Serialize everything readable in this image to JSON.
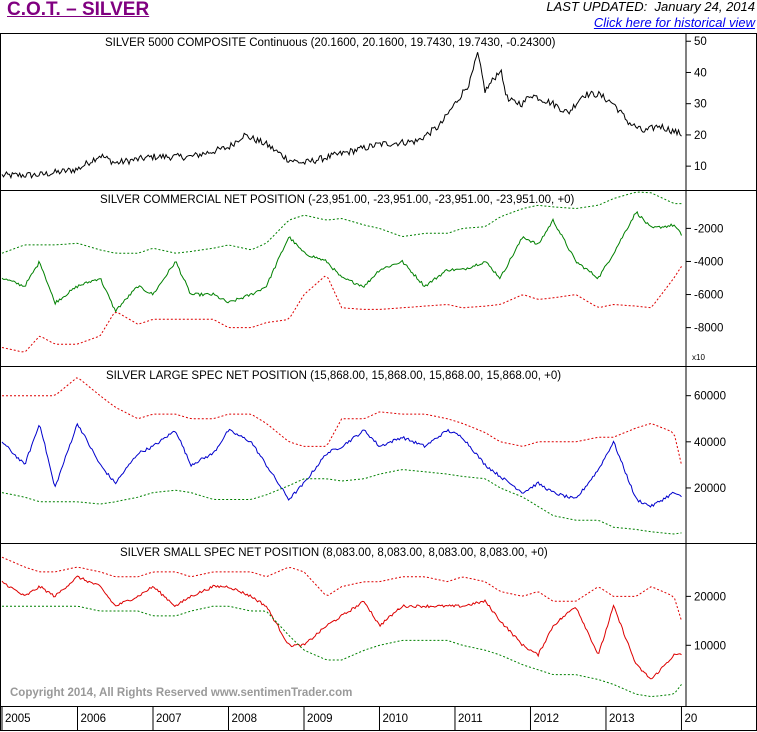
{
  "header": {
    "title": "C.O.T. – SILVER",
    "updated_label": "LAST UPDATED:",
    "updated_date": "January 24, 2014",
    "historical_link": "Click here for historical view"
  },
  "footer": {
    "copyright": "Copyright 2014, All Rights Reserved  www.sentimenTrader.com"
  },
  "colors": {
    "price": "#000000",
    "commercial": "#008000",
    "large_spec": "#0000cc",
    "small_spec": "#dd0000",
    "band_green": "#008000",
    "band_red": "#dd0000"
  },
  "chart_data": [
    {
      "type": "line",
      "title": "SILVER 5000 COMPOSITE Continuous (20.1600, 20.1600, 19.7430, 19.7430, -0.24300)",
      "ylim": [
        3,
        52
      ],
      "yticks": [
        10,
        20,
        30,
        40,
        50
      ],
      "tick_labels": [
        "10",
        "20",
        "30",
        "40",
        "50"
      ],
      "x": [
        "2005.0",
        "2005.5",
        "2006.0",
        "2006.3",
        "2006.5",
        "2007.0",
        "2007.5",
        "2008.0",
        "2008.2",
        "2008.5",
        "2008.8",
        "2009.0",
        "2009.5",
        "2010.0",
        "2010.5",
        "2010.8",
        "2011.0",
        "2011.2",
        "2011.3",
        "2011.4",
        "2011.6",
        "2011.7",
        "2011.9",
        "2012.0",
        "2012.3",
        "2012.5",
        "2012.7",
        "2012.9",
        "2013.1",
        "2013.3",
        "2013.5",
        "2013.7",
        "2014.0"
      ],
      "series": [
        {
          "values": [
            7,
            7.2,
            9,
            13.5,
            11,
            13,
            13,
            16,
            20,
            17,
            12,
            11,
            14,
            17,
            18,
            23,
            30,
            37,
            46,
            34,
            41,
            31,
            30,
            33,
            30,
            27,
            33,
            33,
            30,
            24,
            21,
            23,
            20.2
          ]
        }
      ]
    },
    {
      "type": "line",
      "title": "SILVER COMMERCIAL NET POSITION (-23,951.00, -23,951.00, -23,951.00, -23,951.00, +0)",
      "ylim": [
        -10200,
        200
      ],
      "yticks": [
        -8000,
        -6000,
        -4000,
        -2000
      ],
      "tick_labels": [
        "-8000",
        "-6000",
        "-4000",
        "-2000"
      ],
      "scale_note": "x10",
      "x": [
        "2005.0",
        "2005.3",
        "2005.5",
        "2005.7",
        "2006.0",
        "2006.3",
        "2006.5",
        "2006.8",
        "2007.0",
        "2007.3",
        "2007.5",
        "2007.8",
        "2008.0",
        "2008.3",
        "2008.5",
        "2008.8",
        "2009.0",
        "2009.3",
        "2009.5",
        "2009.8",
        "2010.0",
        "2010.3",
        "2010.6",
        "2010.9",
        "2011.1",
        "2011.4",
        "2011.6",
        "2011.9",
        "2012.1",
        "2012.3",
        "2012.6",
        "2012.9",
        "2013.1",
        "2013.4",
        "2013.6",
        "2013.9",
        "2014.0"
      ],
      "series": [
        {
          "name": "",
          "values": [
            -5000,
            -5500,
            -4000,
            -6500,
            -5500,
            -5000,
            -7000,
            -5500,
            -6000,
            -4000,
            -6000,
            -6000,
            -6500,
            -6000,
            -5500,
            -2500,
            -3500,
            -4000,
            -5000,
            -5500,
            -4500,
            -4000,
            -5500,
            -4500,
            -4500,
            -4000,
            -5000,
            -2500,
            -3000,
            -1500,
            -4000,
            -5000,
            -3500,
            -1000,
            -2000,
            -1800,
            -2395
          ]
        },
        {
          "name": "",
          "values": [
            -3500,
            -3000,
            -3000,
            -3000,
            -2900,
            -3300,
            -3500,
            -3500,
            -3200,
            -3500,
            -3400,
            -3200,
            -3000,
            -3300,
            -2900,
            -1500,
            -1200,
            -1500,
            -1400,
            -1800,
            -2000,
            -2500,
            -2300,
            -2300,
            -2000,
            -1900,
            -1300,
            -800,
            -600,
            -700,
            -800,
            -600,
            -200,
            200,
            150,
            -500,
            -500
          ]
        },
        {
          "name": "",
          "values": [
            -9200,
            -9500,
            -8500,
            -9000,
            -9000,
            -8500,
            -7000,
            -7800,
            -7500,
            -7500,
            -7500,
            -7500,
            -8000,
            -8000,
            -7700,
            -7500,
            -6000,
            -4800,
            -6800,
            -6900,
            -6900,
            -6800,
            -6700,
            -6600,
            -6800,
            -6700,
            -6600,
            -6000,
            -6300,
            -6200,
            -6000,
            -6800,
            -6600,
            -6700,
            -6800,
            -5000,
            -4300
          ]
        }
      ]
    },
    {
      "type": "line",
      "title": "SILVER LARGE SPEC NET POSITION (15,868.00, 15,868.00, 15,868.00, 15,868.00, +0)",
      "ylim": [
        -3000,
        72000
      ],
      "yticks": [
        20000,
        40000,
        60000
      ],
      "tick_labels": [
        "20000",
        "40000",
        "60000"
      ],
      "x": [
        "2005.0",
        "2005.3",
        "2005.5",
        "2005.7",
        "2006.0",
        "2006.3",
        "2006.5",
        "2006.8",
        "2007.0",
        "2007.3",
        "2007.5",
        "2007.8",
        "2008.0",
        "2008.3",
        "2008.5",
        "2008.8",
        "2009.0",
        "2009.3",
        "2009.5",
        "2009.8",
        "2010.0",
        "2010.3",
        "2010.6",
        "2010.9",
        "2011.1",
        "2011.4",
        "2011.6",
        "2011.9",
        "2012.1",
        "2012.3",
        "2012.6",
        "2012.9",
        "2013.1",
        "2013.4",
        "2013.6",
        "2013.9",
        "2014.0"
      ],
      "series": [
        {
          "name": "",
          "values": [
            40000,
            30000,
            48000,
            20000,
            48000,
            30000,
            22000,
            35000,
            38000,
            45000,
            30000,
            35000,
            45000,
            40000,
            30000,
            15000,
            22000,
            35000,
            38000,
            45000,
            38000,
            42000,
            38000,
            45000,
            42000,
            30000,
            25000,
            18000,
            22000,
            18000,
            15000,
            28000,
            40000,
            15000,
            12000,
            18000,
            15868
          ]
        },
        {
          "name": "",
          "values": [
            60000,
            60000,
            60000,
            60000,
            68000,
            60000,
            55000,
            50000,
            52000,
            52000,
            50000,
            50000,
            52000,
            52000,
            48000,
            40000,
            38000,
            38000,
            50000,
            50000,
            53000,
            52000,
            52000,
            50000,
            48000,
            44000,
            40000,
            38000,
            40000,
            40000,
            40000,
            42000,
            42000,
            46000,
            48000,
            44000,
            30000
          ]
        },
        {
          "name": "",
          "values": [
            18000,
            16000,
            14000,
            14000,
            14000,
            13000,
            14000,
            16000,
            18000,
            19000,
            18000,
            15000,
            15000,
            15000,
            17000,
            21000,
            24000,
            24000,
            23000,
            24000,
            26000,
            28000,
            27000,
            26000,
            25000,
            24000,
            20000,
            16000,
            12000,
            8000,
            6000,
            6000,
            3000,
            2000,
            1000,
            0,
            500
          ]
        }
      ]
    },
    {
      "type": "line",
      "title": "SILVER SMALL SPEC NET POSITION (8,083.00, 8,083.00, 8,083.00, 8,083.00, +0)",
      "ylim": [
        -2000,
        30500
      ],
      "yticks": [
        10000,
        20000
      ],
      "tick_labels": [
        "10000",
        "20000"
      ],
      "x": [
        "2005.0",
        "2005.3",
        "2005.5",
        "2005.7",
        "2006.0",
        "2006.3",
        "2006.5",
        "2006.8",
        "2007.0",
        "2007.3",
        "2007.5",
        "2007.8",
        "2008.0",
        "2008.3",
        "2008.5",
        "2008.8",
        "2009.0",
        "2009.3",
        "2009.5",
        "2009.8",
        "2010.0",
        "2010.3",
        "2010.6",
        "2010.9",
        "2011.1",
        "2011.4",
        "2011.6",
        "2011.9",
        "2012.1",
        "2012.3",
        "2012.6",
        "2012.9",
        "2013.1",
        "2013.4",
        "2013.6",
        "2013.9",
        "2014.0"
      ],
      "series": [
        {
          "name": "",
          "values": [
            23000,
            20000,
            22000,
            20000,
            24000,
            22000,
            18000,
            20000,
            22000,
            18000,
            20000,
            22000,
            22000,
            20000,
            18000,
            10000,
            10000,
            14000,
            16000,
            19000,
            14000,
            18000,
            18000,
            18000,
            18000,
            19000,
            15000,
            10000,
            8000,
            14000,
            18000,
            8000,
            18000,
            6000,
            3000,
            8000,
            8083
          ]
        },
        {
          "name": "",
          "values": [
            28000,
            26000,
            25000,
            25000,
            26000,
            25000,
            24000,
            24000,
            25000,
            25000,
            24000,
            25000,
            25000,
            25000,
            24000,
            26000,
            25000,
            20000,
            22000,
            23000,
            23000,
            24000,
            24000,
            23000,
            24000,
            23000,
            21000,
            20000,
            21000,
            19000,
            19000,
            22000,
            20000,
            20000,
            22000,
            20000,
            15000
          ]
        },
        {
          "name": "",
          "values": [
            18000,
            18000,
            18000,
            18000,
            18000,
            17000,
            17000,
            17000,
            16000,
            16000,
            17000,
            18000,
            18000,
            17000,
            17000,
            12000,
            9000,
            7000,
            7000,
            9000,
            10000,
            11000,
            11000,
            11000,
            10000,
            9000,
            8000,
            6000,
            5000,
            4000,
            4000,
            3000,
            2000,
            0,
            -500,
            0,
            2000
          ]
        }
      ]
    }
  ],
  "x_axis": {
    "years": [
      "2005",
      "2006",
      "2007",
      "2008",
      "2009",
      "2010",
      "2011",
      "2012",
      "2013",
      "20"
    ]
  }
}
